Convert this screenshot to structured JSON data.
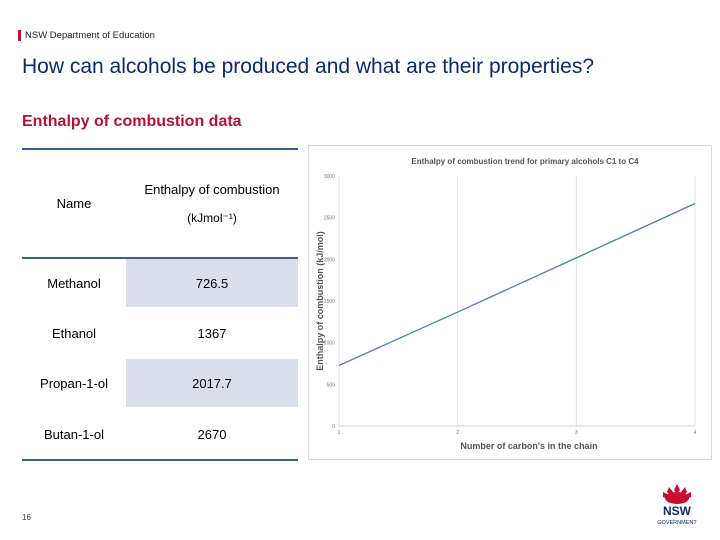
{
  "header": {
    "department": "NSW Department of Education"
  },
  "slide": {
    "title": "How can alcohols be produced and what are their properties?",
    "subtitle": "Enthalpy of combustion data",
    "page_number": "16"
  },
  "table": {
    "col1_header": "Name",
    "col2_header_line1": "Enthalpy of combustion",
    "col2_header_line2": "(kJmol⁻¹)",
    "rows": [
      {
        "name": "Methanol",
        "value": "726.5"
      },
      {
        "name": "Ethanol",
        "value": "1367"
      },
      {
        "name": "Propan-1-ol",
        "value": "2017.7"
      },
      {
        "name": "Butan-1-ol",
        "value": "2670"
      }
    ]
  },
  "chart_data": {
    "type": "line",
    "title": "Enthalpy of combustion trend for primary alcohols C1 to C4",
    "xlabel": "Number of carbon's in the chain",
    "ylabel": "Enthalpy of combustion (kJ/mol)",
    "x": [
      1,
      2,
      3,
      4
    ],
    "x_tick_labels": [
      "1",
      "2",
      "3",
      "4"
    ],
    "xlim": [
      1,
      4
    ],
    "y_ticks": [
      0,
      500,
      1000,
      1500,
      2000,
      2500,
      3000
    ],
    "y_tick_labels": [
      "0",
      "500",
      "1000",
      "1500",
      "2000",
      "2500",
      "3000"
    ],
    "ylim": [
      0,
      3000
    ],
    "series": [
      {
        "values": [
          726.5,
          1367,
          2017.7,
          2670
        ],
        "color": "#4a7ebb"
      }
    ],
    "grid": "vertical",
    "legend": "none"
  },
  "logo": {
    "text_line1": "NSW",
    "text_line2": "GOVERNMENT",
    "color": "#c8102e"
  },
  "colors": {
    "title": "#0b2a6f",
    "subtitle": "#b5123a",
    "accent": "#c8102e",
    "table_shade": "#d9dfec"
  }
}
